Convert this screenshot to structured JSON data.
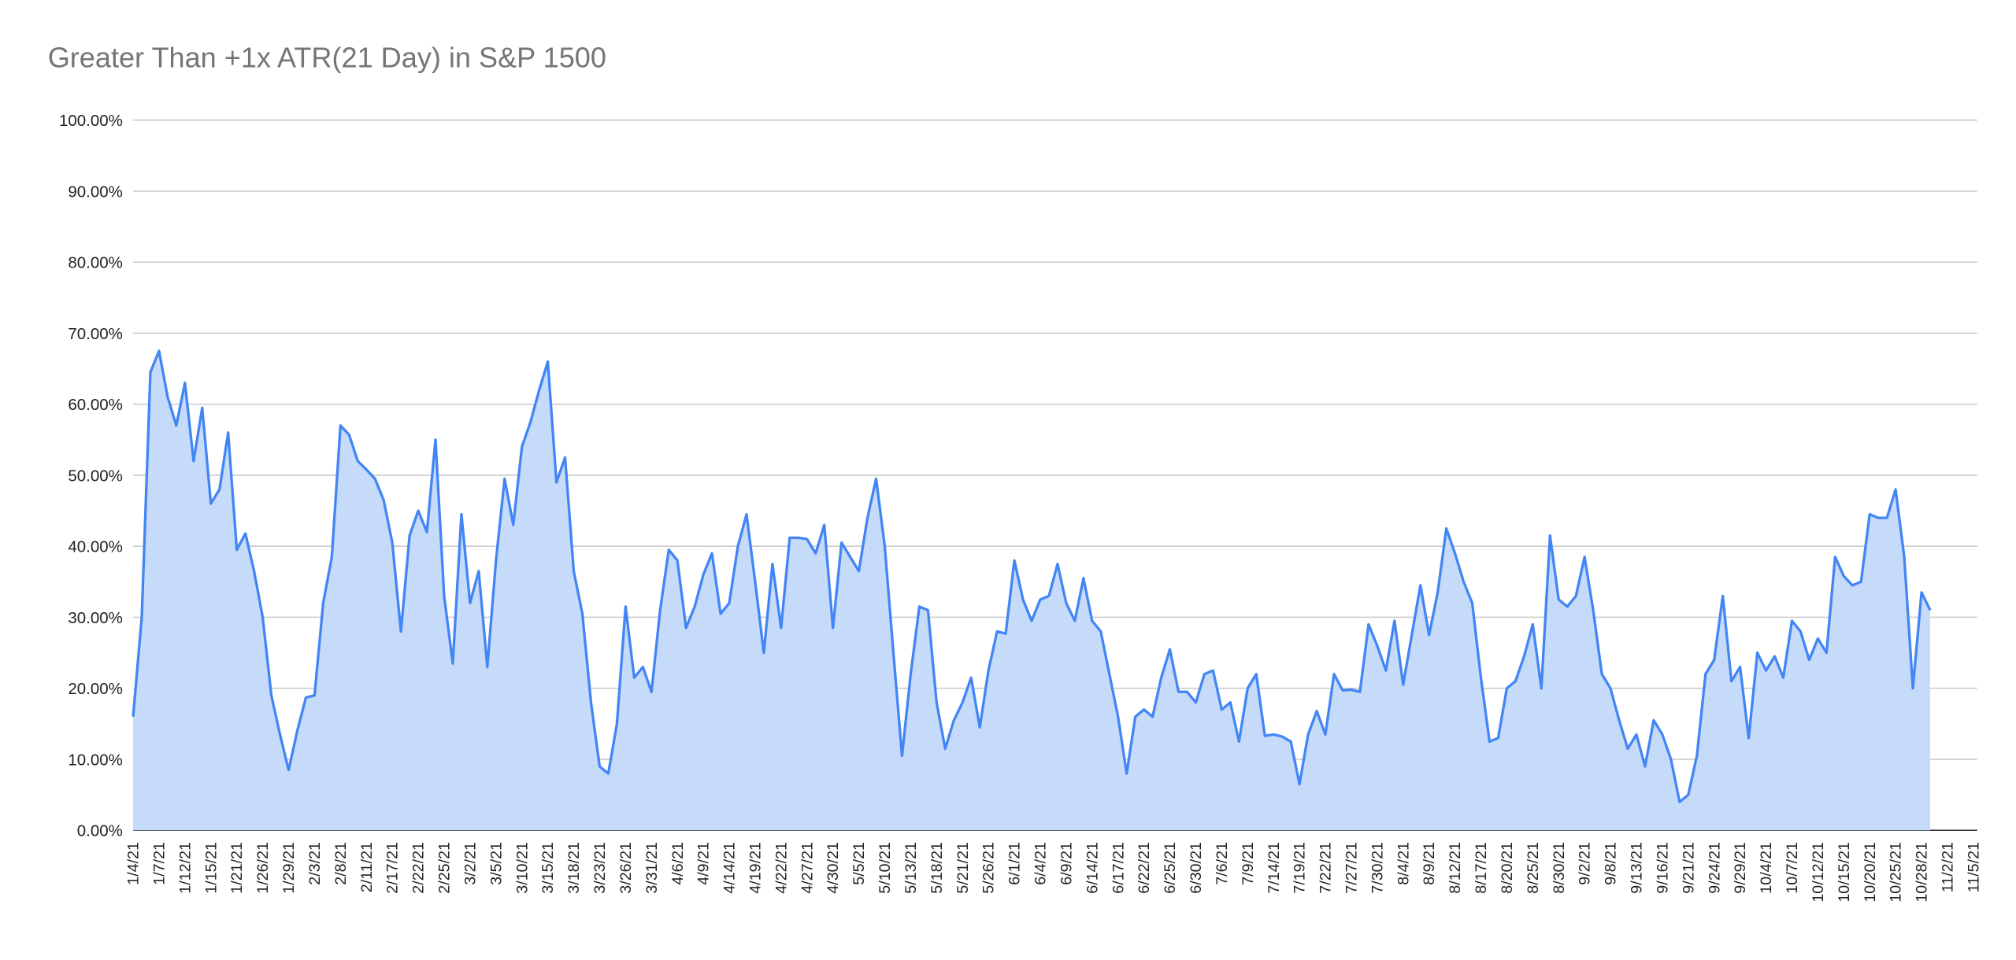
{
  "chart_data": {
    "type": "area",
    "title": "Greater Than +1x ATR(21 Day) in S&P 1500",
    "xlabel": "",
    "ylabel": "",
    "ylim": [
      0,
      100
    ],
    "y_tick_labels": [
      "0.00%",
      "10.00%",
      "20.00%",
      "30.00%",
      "40.00%",
      "50.00%",
      "60.00%",
      "70.00%",
      "80.00%",
      "90.00%",
      "100.00%"
    ],
    "x_tick_labels": [
      "1/4/21",
      "1/7/21",
      "1/12/21",
      "1/15/21",
      "1/21/21",
      "1/26/21",
      "1/29/21",
      "2/3/21",
      "2/8/21",
      "2/11/21",
      "2/17/21",
      "2/22/21",
      "2/25/21",
      "3/2/21",
      "3/5/21",
      "3/10/21",
      "3/15/21",
      "3/18/21",
      "3/23/21",
      "3/26/21",
      "3/31/21",
      "4/6/21",
      "4/9/21",
      "4/14/21",
      "4/19/21",
      "4/22/21",
      "4/27/21",
      "4/30/21",
      "5/5/21",
      "5/10/21",
      "5/13/21",
      "5/18/21",
      "5/21/21",
      "5/26/21",
      "6/1/21",
      "6/4/21",
      "6/9/21",
      "6/14/21",
      "6/17/21",
      "6/22/21",
      "6/25/21",
      "6/30/21",
      "7/6/21",
      "7/9/21",
      "7/14/21",
      "7/19/21",
      "7/22/21",
      "7/27/21",
      "7/30/21",
      "8/4/21",
      "8/9/21",
      "8/12/21",
      "8/17/21",
      "8/20/21",
      "8/25/21",
      "8/30/21",
      "9/2/21",
      "9/8/21",
      "9/13/21",
      "9/16/21",
      "9/21/21",
      "9/24/21",
      "9/29/21",
      "10/4/21",
      "10/7/21",
      "10/12/21",
      "10/15/21",
      "10/20/21",
      "10/25/21",
      "10/28/21",
      "11/2/21",
      "11/5/21"
    ],
    "trading_days_per_tick": 3,
    "grid": true,
    "legend": "none",
    "line_color": "#4285f4",
    "fill_color": "#c6daf9",
    "values": [
      16,
      30,
      64.5,
      67.5,
      61,
      57,
      63,
      52,
      59.5,
      46,
      48,
      56,
      39.5,
      41.8,
      36.5,
      30,
      19,
      13.5,
      8.5,
      14,
      18.7,
      19,
      32,
      38.5,
      57,
      55.7,
      52,
      50.8,
      49.5,
      46.5,
      40.5,
      28,
      41.5,
      45,
      42,
      55,
      33,
      23.5,
      44.5,
      32,
      36.5,
      23,
      38,
      49.5,
      43,
      54,
      57.5,
      62,
      66,
      49,
      52.5,
      36.5,
      30.5,
      18,
      9,
      8,
      15,
      31.5,
      21.5,
      23,
      19.5,
      31,
      39.5,
      38,
      28.5,
      31.5,
      36,
      39,
      30.5,
      32,
      40,
      44.5,
      35,
      25,
      37.5,
      28.5,
      41.2,
      41.2,
      41,
      39,
      43,
      28.5,
      40.5,
      38.5,
      36.5,
      44,
      49.5,
      40,
      25,
      10.5,
      22,
      31.5,
      31,
      18,
      11.5,
      15.5,
      18,
      21.5,
      14.5,
      22.5,
      28,
      27.7,
      38,
      32.5,
      29.5,
      32.5,
      33,
      37.5,
      32,
      29.5,
      35.5,
      29.5,
      28,
      22,
      16,
      8,
      16,
      17,
      16,
      21.5,
      25.5,
      19.5,
      19.5,
      18,
      22,
      22.5,
      17,
      18,
      12.5,
      20,
      22,
      13.3,
      13.5,
      13.2,
      12.5,
      6.5,
      13.5,
      16.8,
      13.5,
      22,
      19.7,
      19.8,
      19.5,
      29,
      26,
      22.5,
      29.5,
      20.5,
      27.5,
      34.5,
      27.5,
      33.5,
      42.5,
      39,
      35,
      32,
      21.5,
      12.5,
      13,
      20,
      21,
      24.5,
      29,
      20,
      41.5,
      32.5,
      31.5,
      33,
      38.5,
      31,
      22,
      20,
      15.5,
      11.5,
      13.5,
      9,
      15.5,
      13.5,
      10,
      4,
      5,
      10.5,
      22,
      24,
      33,
      21,
      23,
      13,
      25,
      22.5,
      24.5,
      21.5,
      29.5,
      28,
      24,
      27,
      25,
      38.5,
      35.8,
      34.5,
      35,
      44.5,
      44,
      44,
      48,
      38.5,
      20,
      33.5,
      31
    ]
  }
}
